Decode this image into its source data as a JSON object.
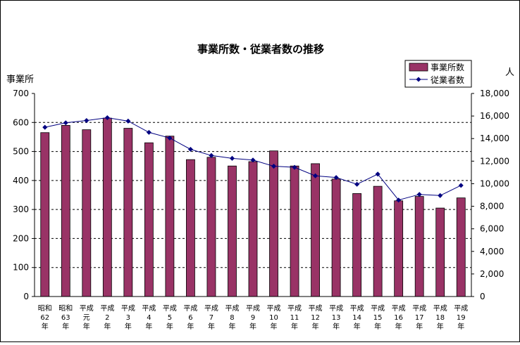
{
  "chart_data": {
    "type": "bar",
    "title": "事業所数・従業者数の推移",
    "categories": [
      [
        "昭和",
        "62",
        "年"
      ],
      [
        "昭和",
        "63",
        "年"
      ],
      [
        "平成",
        "元",
        "年"
      ],
      [
        "平成",
        "2",
        "年"
      ],
      [
        "平成",
        "3",
        "年"
      ],
      [
        "平成",
        "4",
        "年"
      ],
      [
        "平成",
        "5",
        "年"
      ],
      [
        "平成",
        "6",
        "年"
      ],
      [
        "平成",
        "7",
        "年"
      ],
      [
        "平成",
        "8",
        "年"
      ],
      [
        "平成",
        "9",
        "年"
      ],
      [
        "平成",
        "10",
        "年"
      ],
      [
        "平成",
        "11",
        "年"
      ],
      [
        "平成",
        "12",
        "年"
      ],
      [
        "平成",
        "13",
        "年"
      ],
      [
        "平成",
        "14",
        "年"
      ],
      [
        "平成",
        "15",
        "年"
      ],
      [
        "平成",
        "16",
        "年"
      ],
      [
        "平成",
        "17",
        "年"
      ],
      [
        "平成",
        "18",
        "年"
      ],
      [
        "平成",
        "19",
        "年"
      ]
    ],
    "series": [
      {
        "name": "事業所数",
        "type": "bar",
        "axis": "left",
        "color": "#993366",
        "values": [
          565,
          590,
          575,
          615,
          580,
          530,
          553,
          472,
          480,
          450,
          465,
          502,
          450,
          458,
          405,
          355,
          380,
          330,
          345,
          305,
          340
        ]
      },
      {
        "name": "従業者数",
        "type": "line",
        "axis": "right",
        "color": "#000080",
        "values": [
          15000,
          15400,
          15600,
          15850,
          15550,
          14550,
          14050,
          13050,
          12500,
          12250,
          12100,
          11550,
          11450,
          10700,
          10550,
          9950,
          10850,
          8550,
          9050,
          8950,
          9850
        ]
      }
    ],
    "y_left": {
      "label": "事業所",
      "range": [
        0,
        700
      ],
      "ticks": [
        "0",
        "100",
        "200",
        "300",
        "400",
        "500",
        "600",
        "700"
      ]
    },
    "y_right": {
      "label": "人",
      "range": [
        0,
        18000
      ],
      "ticks": [
        "0",
        "2,000",
        "4,000",
        "6,000",
        "8,000",
        "10,000",
        "12,000",
        "14,000",
        "16,000",
        "18,000"
      ]
    },
    "grid": "horizontal-dashed",
    "legend": "top-right"
  }
}
